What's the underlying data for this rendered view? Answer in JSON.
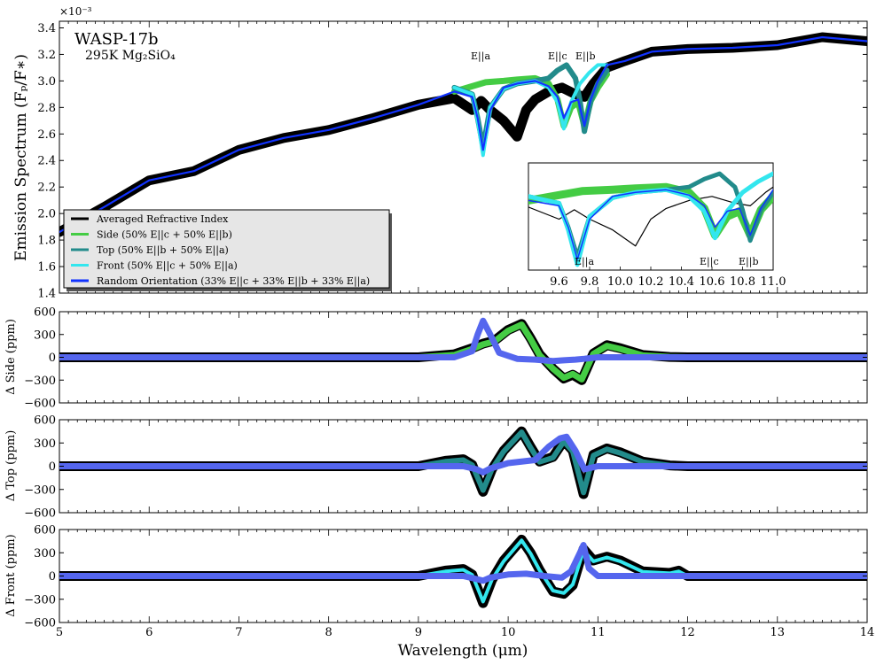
{
  "chart_data": [
    {
      "type": "line",
      "panel": "main",
      "title": "WASP-17b",
      "subtitle": "295K Mg₂SiO₄",
      "scale_note": "×10⁻³",
      "ylabel": "Emission Spectrum (Fₚ/F∗)",
      "xlim": [
        5,
        14
      ],
      "ylim": [
        1.4,
        3.45
      ],
      "yticks": [
        "1.4",
        "1.6",
        "1.8",
        "2.0",
        "2.2",
        "2.4",
        "2.6",
        "2.8",
        "3.0",
        "3.2",
        "3.4"
      ],
      "ytick_values": [
        1.4,
        1.6,
        1.8,
        2.0,
        2.2,
        2.4,
        2.6,
        2.8,
        3.0,
        3.2,
        3.4
      ],
      "annotations": [
        {
          "text": "E||a",
          "x": 9.72,
          "y": 3.1
        },
        {
          "text": "E||c",
          "x": 10.55,
          "y": 3.1
        },
        {
          "text": "E||b",
          "x": 10.85,
          "y": 3.1
        }
      ],
      "legend": {
        "placement": "lower-left",
        "entries": [
          {
            "label": "Averaged Refractive Index",
            "color": "#000000"
          },
          {
            "label": "Side (50% E||c + 50% E||b)",
            "color": "#44cc44"
          },
          {
            "label": "Top (50% E||b + 50% E||a)",
            "color": "#228b8b"
          },
          {
            "label": "Front (50% E||c + 50% E||a)",
            "color": "#33e6ee"
          },
          {
            "label": "Random Orientation (33% E||c + 33% E||b + 33% E||a)",
            "color": "#1133ff"
          }
        ]
      },
      "series": [
        {
          "name": "Averaged Refractive Index",
          "color": "#000000",
          "x": [
            5.0,
            5.5,
            6.0,
            6.5,
            7.0,
            7.5,
            8.0,
            8.5,
            9.0,
            9.4,
            9.6,
            9.7,
            9.8,
            9.95,
            10.1,
            10.2,
            10.3,
            10.45,
            10.6,
            10.75,
            10.85,
            10.95,
            11.1,
            11.3,
            11.6,
            12.0,
            12.5,
            13.0,
            13.5,
            14.0
          ],
          "y": [
            1.86,
            2.05,
            2.25,
            2.32,
            2.48,
            2.57,
            2.63,
            2.72,
            2.82,
            2.87,
            2.78,
            2.85,
            2.78,
            2.7,
            2.58,
            2.78,
            2.86,
            2.92,
            2.95,
            2.9,
            2.88,
            2.98,
            3.1,
            3.15,
            3.22,
            3.24,
            3.25,
            3.27,
            3.33,
            3.3
          ]
        },
        {
          "name": "Side (50% E||c + 50% E||b)",
          "color": "#44cc44",
          "x": [
            9.4,
            9.6,
            9.75,
            9.95,
            10.1,
            10.3,
            10.45,
            10.55,
            10.62,
            10.7,
            10.78,
            10.85,
            10.92,
            11.0,
            11.1
          ],
          "y": [
            2.92,
            2.96,
            2.99,
            3.0,
            3.01,
            3.02,
            2.98,
            2.86,
            2.66,
            2.8,
            2.84,
            2.66,
            2.85,
            2.95,
            3.05
          ]
        },
        {
          "name": "Top (50% E||b + 50% E||a)",
          "color": "#228b8b",
          "x": [
            9.4,
            9.6,
            9.66,
            9.72,
            9.8,
            9.95,
            10.1,
            10.3,
            10.45,
            10.55,
            10.65,
            10.75,
            10.8,
            10.85,
            10.92,
            11.0,
            11.1
          ],
          "y": [
            2.95,
            2.9,
            2.72,
            2.5,
            2.8,
            2.94,
            2.98,
            3.0,
            3.02,
            3.08,
            3.12,
            3.02,
            2.85,
            2.62,
            2.85,
            2.98,
            3.08
          ]
        },
        {
          "name": "Front (50% E||c + 50% E||a)",
          "color": "#33e6ee",
          "x": [
            9.4,
            9.6,
            9.66,
            9.72,
            9.8,
            9.95,
            10.1,
            10.3,
            10.45,
            10.55,
            10.62,
            10.7,
            10.8,
            10.9,
            11.0,
            11.1
          ],
          "y": [
            2.95,
            2.9,
            2.7,
            2.44,
            2.8,
            2.94,
            2.98,
            3.0,
            2.95,
            2.84,
            2.64,
            2.84,
            2.98,
            3.06,
            3.12,
            3.12
          ]
        },
        {
          "name": "Random Orientation (33% E||c + 33% E||b + 33% E||a)",
          "color": "#1133ff",
          "x": [
            5.0,
            5.5,
            6.0,
            6.5,
            7.0,
            7.5,
            8.0,
            8.5,
            9.0,
            9.4,
            9.6,
            9.66,
            9.72,
            9.8,
            9.95,
            10.1,
            10.3,
            10.45,
            10.55,
            10.62,
            10.7,
            10.78,
            10.85,
            10.92,
            11.0,
            11.1,
            11.3,
            11.6,
            12.0,
            12.5,
            13.0,
            13.5,
            14.0
          ],
          "y": [
            1.86,
            2.05,
            2.25,
            2.32,
            2.48,
            2.57,
            2.63,
            2.72,
            2.82,
            2.92,
            2.88,
            2.72,
            2.48,
            2.78,
            2.95,
            2.98,
            3.0,
            2.96,
            2.88,
            2.72,
            2.84,
            2.86,
            2.66,
            2.86,
            3.0,
            3.12,
            3.15,
            3.22,
            3.24,
            3.25,
            3.27,
            3.33,
            3.3
          ]
        }
      ]
    },
    {
      "type": "line",
      "panel": "inset",
      "xlim": [
        9.4,
        11.0
      ],
      "xticks": [
        "9.6",
        "9.8",
        "10.0",
        "10.2",
        "10.4",
        "10.6",
        "10.8",
        "11.0"
      ],
      "xtick_values": [
        9.6,
        9.8,
        10.0,
        10.2,
        10.4,
        10.6,
        10.8,
        11.0
      ],
      "annotations": [
        {
          "text": "E||a",
          "x": 9.82
        },
        {
          "text": "E||c",
          "x": 10.6
        },
        {
          "text": "E||b",
          "x": 10.84
        }
      ]
    },
    {
      "type": "line",
      "panel": "delta-side",
      "ylabel": "Δ Side (ppm)",
      "ylim": [
        -600,
        600
      ],
      "yticks": [
        "600",
        "300",
        "0",
        "−300",
        "−600"
      ],
      "ytick_values": [
        600,
        300,
        0,
        -300,
        -600
      ],
      "series": [
        {
          "name": "Averaged Refractive Index",
          "color": "#000000",
          "x": [
            5.0,
            9.0,
            9.4,
            9.6,
            9.72,
            9.85,
            10.0,
            10.15,
            10.25,
            10.35,
            10.5,
            10.62,
            10.72,
            10.82,
            10.95,
            11.1,
            11.25,
            11.5,
            11.8,
            12.0,
            14.0
          ],
          "y": [
            0,
            0,
            40,
            120,
            180,
            220,
            360,
            440,
            250,
            40,
            -150,
            -280,
            -230,
            -300,
            50,
            160,
            120,
            30,
            5,
            0,
            0
          ]
        },
        {
          "name": "Side (50% E||c + 50% E||b)",
          "color": "#44cc44",
          "x": [
            5.0,
            9.0,
            9.4,
            9.6,
            9.72,
            9.85,
            10.0,
            10.15,
            10.25,
            10.35,
            10.5,
            10.62,
            10.72,
            10.82,
            10.95,
            11.1,
            11.25,
            11.5,
            11.8,
            12.0,
            14.0
          ],
          "y": [
            0,
            0,
            30,
            110,
            170,
            210,
            350,
            430,
            240,
            30,
            -150,
            -270,
            -220,
            -290,
            45,
            150,
            110,
            25,
            5,
            0,
            0
          ]
        },
        {
          "name": "Random Orientation (33% E||c + 33% E||b + 33% E||a)",
          "color": "#5566ee",
          "x": [
            5.0,
            9.4,
            9.6,
            9.66,
            9.72,
            9.8,
            9.9,
            10.1,
            10.3,
            10.5,
            10.62,
            10.75,
            10.85,
            11.0,
            11.3,
            14.0
          ],
          "y": [
            0,
            0,
            80,
            300,
            480,
            300,
            60,
            -20,
            -30,
            -50,
            -40,
            -30,
            -20,
            0,
            0,
            0
          ]
        }
      ]
    },
    {
      "type": "line",
      "panel": "delta-top",
      "ylabel": "Δ Top (ppm)",
      "ylim": [
        -600,
        600
      ],
      "yticks": [
        "600",
        "300",
        "0",
        "−300",
        "−600"
      ],
      "ytick_values": [
        600,
        300,
        0,
        -300,
        -600
      ],
      "series": [
        {
          "name": "Averaged Refractive Index",
          "color": "#000000",
          "x": [
            5.0,
            9.0,
            9.3,
            9.5,
            9.6,
            9.72,
            9.82,
            9.95,
            10.15,
            10.25,
            10.35,
            10.5,
            10.62,
            10.72,
            10.84,
            10.95,
            11.1,
            11.25,
            11.5,
            11.8,
            12.0,
            14.0
          ],
          "y": [
            0,
            0,
            70,
            90,
            20,
            -330,
            -40,
            200,
            450,
            250,
            60,
            120,
            330,
            200,
            -360,
            150,
            230,
            180,
            60,
            10,
            0,
            0
          ]
        },
        {
          "name": "Top (50% E||b + 50% E||a)",
          "color": "#228b8b",
          "x": [
            5.0,
            9.0,
            9.3,
            9.5,
            9.6,
            9.72,
            9.82,
            9.95,
            10.15,
            10.25,
            10.35,
            10.5,
            10.62,
            10.72,
            10.84,
            10.95,
            11.1,
            11.25,
            11.5,
            11.8,
            12.0,
            14.0
          ],
          "y": [
            0,
            0,
            60,
            80,
            15,
            -310,
            -35,
            190,
            440,
            240,
            55,
            110,
            320,
            190,
            -340,
            140,
            220,
            170,
            55,
            10,
            0,
            0
          ]
        },
        {
          "name": "Random Orientation (33% E||c + 33% E||b + 33% E||a)",
          "color": "#5566ee",
          "x": [
            5.0,
            9.5,
            9.65,
            9.72,
            9.8,
            10.0,
            10.3,
            10.45,
            10.58,
            10.65,
            10.75,
            10.85,
            11.0,
            11.3,
            14.0
          ],
          "y": [
            0,
            0,
            -40,
            -80,
            -30,
            40,
            80,
            250,
            360,
            380,
            200,
            -40,
            0,
            0,
            0
          ]
        }
      ]
    },
    {
      "type": "line",
      "panel": "delta-front",
      "ylabel": "Δ Front (ppm)",
      "xlabel": "Wavelength (μm)",
      "xlim": [
        5,
        14
      ],
      "xticks": [
        "5",
        "6",
        "7",
        "8",
        "9",
        "10",
        "11",
        "12",
        "13",
        "14"
      ],
      "xtick_values": [
        5,
        6,
        7,
        8,
        9,
        10,
        11,
        12,
        13,
        14
      ],
      "ylim": [
        -600,
        600
      ],
      "yticks": [
        "600",
        "300",
        "0",
        "−300",
        "−600"
      ],
      "ytick_values": [
        600,
        300,
        0,
        -300,
        -600
      ],
      "series": [
        {
          "name": "Averaged Refractive Index",
          "color": "#000000",
          "x": [
            5.0,
            9.0,
            9.3,
            9.5,
            9.6,
            9.72,
            9.82,
            9.95,
            10.15,
            10.25,
            10.35,
            10.5,
            10.62,
            10.72,
            10.84,
            10.95,
            11.1,
            11.25,
            11.5,
            11.8,
            11.9,
            12.0,
            14.0
          ],
          "y": [
            0,
            0,
            70,
            90,
            20,
            -350,
            -50,
            200,
            470,
            300,
            80,
            -200,
            -230,
            -120,
            350,
            200,
            250,
            200,
            60,
            40,
            70,
            0,
            0
          ]
        },
        {
          "name": "Front (50% E||c + 50% E||a)",
          "color": "#33e6ee",
          "x": [
            5.0,
            9.0,
            9.3,
            9.5,
            9.6,
            9.72,
            9.82,
            9.95,
            10.15,
            10.25,
            10.35,
            10.5,
            10.62,
            10.72,
            10.84,
            10.95,
            11.1,
            11.25,
            11.5,
            11.8,
            11.9,
            12.0,
            14.0
          ],
          "y": [
            0,
            0,
            60,
            80,
            15,
            -330,
            -45,
            190,
            460,
            290,
            75,
            -190,
            -220,
            -110,
            330,
            190,
            240,
            190,
            55,
            35,
            60,
            0,
            0
          ]
        },
        {
          "name": "Random Orientation (33% E||c + 33% E||b + 33% E||a)",
          "color": "#5566ee",
          "x": [
            5.0,
            9.5,
            9.65,
            9.72,
            9.8,
            10.0,
            10.2,
            10.4,
            10.6,
            10.7,
            10.8,
            10.84,
            10.9,
            11.0,
            11.3,
            14.0
          ],
          "y": [
            0,
            0,
            -40,
            -60,
            -20,
            20,
            30,
            0,
            -20,
            60,
            300,
            400,
            100,
            0,
            0,
            0
          ]
        }
      ]
    }
  ]
}
